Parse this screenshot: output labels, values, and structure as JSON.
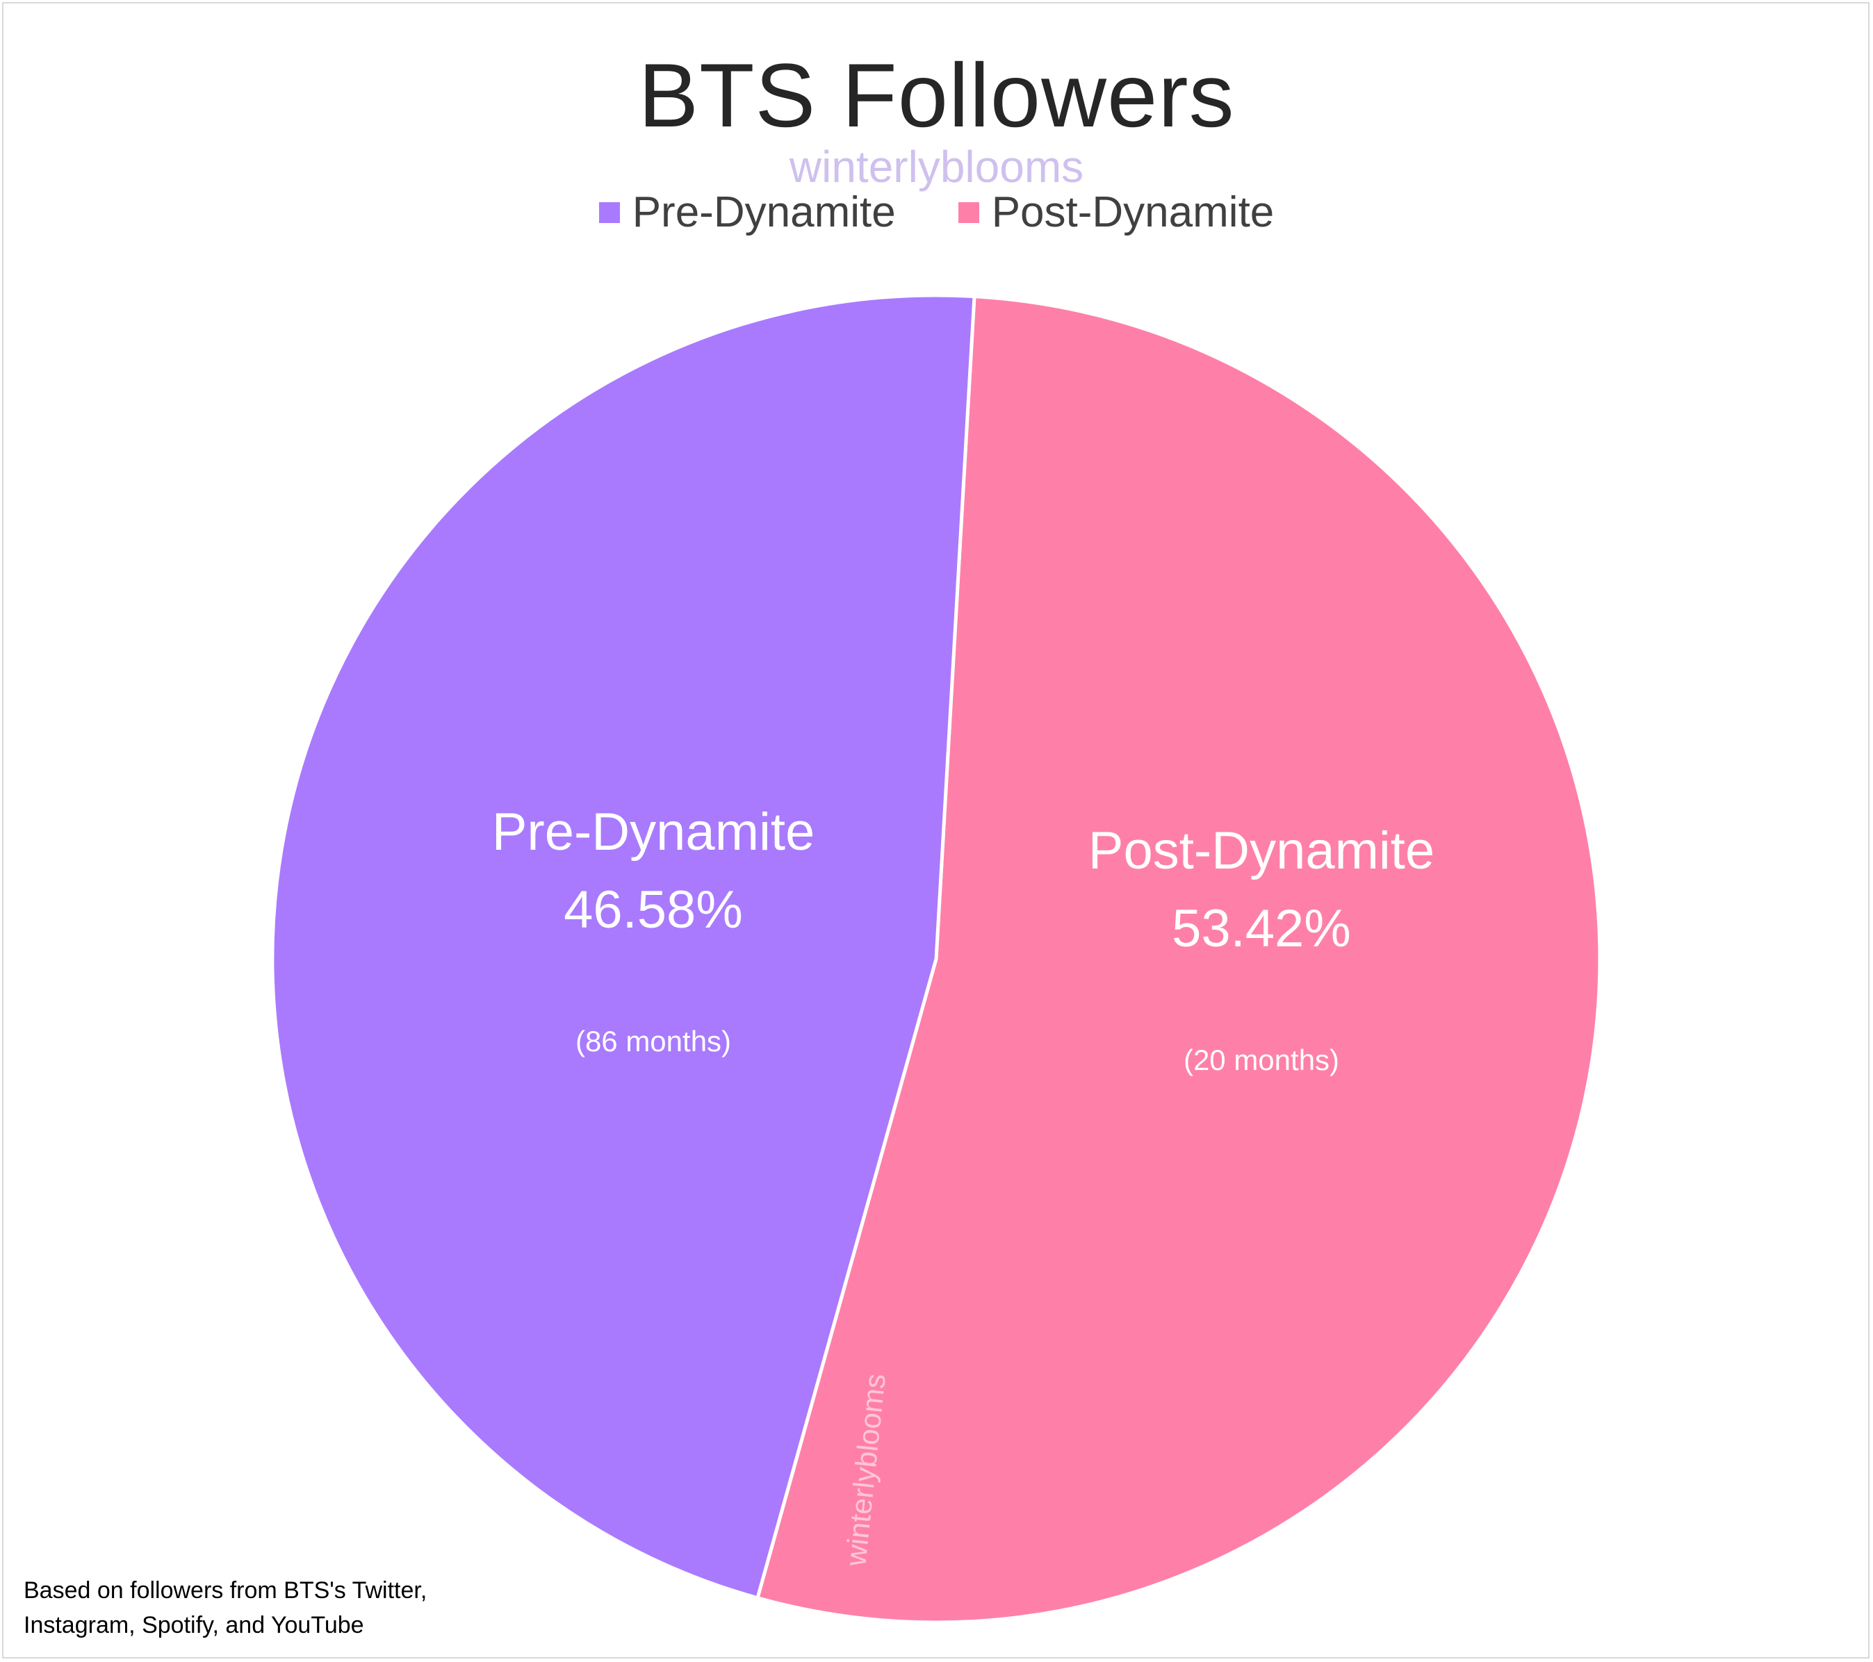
{
  "chart_data": {
    "type": "pie",
    "title": "BTS Followers",
    "categories": [
      "Pre-Dynamite",
      "Post-Dynamite"
    ],
    "values": [
      46.58,
      53.42
    ],
    "units": "%",
    "data_labels": [
      {
        "name": "Pre-Dynamite",
        "percent": "46.58%",
        "note": "(86 months)"
      },
      {
        "name": "Post-Dynamite",
        "percent": "53.42%",
        "note": "(20 months)"
      }
    ],
    "colors": [
      "#a97afe",
      "#fe80a8"
    ],
    "legend_position": "top",
    "watermark": "winterlyblooms",
    "footnote": [
      "Based on followers from BTS's Twitter,",
      "Instagram, Spotify, and YouTube"
    ]
  }
}
